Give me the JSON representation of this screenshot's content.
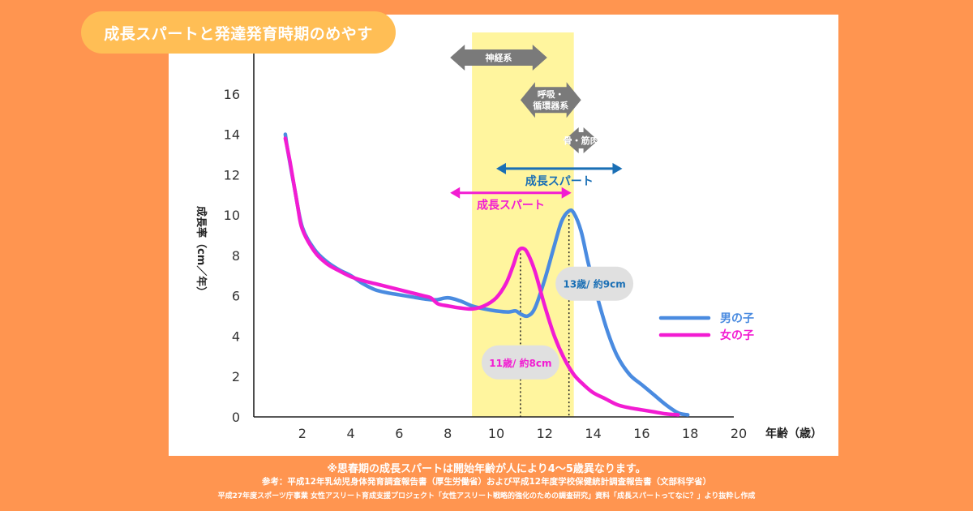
{
  "title": "成長スパートと発達発育時期のめやす",
  "footer": {
    "note": "※思春期の成長スパートは開始年齢が人により4〜5歳異なります。",
    "source1": "参考：平成12年乳幼児身体発育調査報告書（厚生労働省）および平成12年度学校保健統計調査報告書（文部科学省）",
    "source2": "平成27年度スポーツ庁事業 女性アスリート育成支援プロジェクト「女性アスリート戦略的強化のための調査研究」資料「成長スパートってなに？」より抜粋し作成"
  },
  "colors": {
    "boy": "#4A8BE0",
    "girl": "#F21CD2",
    "highlight": "#FFF59E",
    "stage_arrow": "#7A7A7A",
    "boy_spurt": "#1A6FB5",
    "girl_spurt": "#F21CD2",
    "callout_bg": "#E0E0E0"
  },
  "chart_data": {
    "type": "line",
    "ylabel": "成長率（cm／年）",
    "xlabel": "年齢（歳）",
    "xlim": [
      0,
      20
    ],
    "ylim": [
      0,
      18
    ],
    "xticks": [
      2,
      4,
      6,
      8,
      10,
      12,
      14,
      16,
      18,
      20
    ],
    "yticks": [
      0,
      2,
      4,
      6,
      8,
      10,
      12,
      14,
      16
    ],
    "highlight_range": [
      9,
      13.2
    ],
    "legend_position": "right",
    "series": [
      {
        "name": "男の子",
        "color_key": "boy",
        "x": [
          1.3,
          1.4,
          1.7,
          2.0,
          2.5,
          3.0,
          3.5,
          4.0,
          4.5,
          5.0,
          5.5,
          6.0,
          6.5,
          7.0,
          7.5,
          8.0,
          8.5,
          9.0,
          9.5,
          10.0,
          10.5,
          10.8,
          11.0,
          11.3,
          11.6,
          12.0,
          12.4,
          12.7,
          13.0,
          13.2,
          13.5,
          13.8,
          14.2,
          14.6,
          15.0,
          15.5,
          16.0,
          16.5,
          17.0,
          17.5,
          17.9
        ],
        "y": [
          14.0,
          13.2,
          11.2,
          9.4,
          8.3,
          7.7,
          7.3,
          7.0,
          6.6,
          6.3,
          6.15,
          6.05,
          5.95,
          5.85,
          5.8,
          5.9,
          5.75,
          5.5,
          5.35,
          5.25,
          5.2,
          5.25,
          5.1,
          5.0,
          5.4,
          6.8,
          8.5,
          9.7,
          10.2,
          10.1,
          9.2,
          7.6,
          5.8,
          4.2,
          3.0,
          2.1,
          1.6,
          1.1,
          0.6,
          0.2,
          0.1
        ]
      },
      {
        "name": "女の子",
        "color_key": "girl",
        "x": [
          1.3,
          1.5,
          1.8,
          2.0,
          2.5,
          3.0,
          3.5,
          4.0,
          4.5,
          5.0,
          5.5,
          6.0,
          6.5,
          7.0,
          7.3,
          7.6,
          8.0,
          8.5,
          9.0,
          9.5,
          10.0,
          10.4,
          10.7,
          10.9,
          11.1,
          11.3,
          11.6,
          12.0,
          12.4,
          12.8,
          13.2,
          13.6,
          14.0,
          14.5,
          15.0,
          15.5,
          16.0,
          16.5,
          17.0,
          17.5
        ],
        "y": [
          13.8,
          12.6,
          10.5,
          9.3,
          8.2,
          7.6,
          7.25,
          6.95,
          6.75,
          6.6,
          6.45,
          6.3,
          6.15,
          6.0,
          5.9,
          5.6,
          5.5,
          5.4,
          5.35,
          5.5,
          5.9,
          6.6,
          7.5,
          8.2,
          8.35,
          8.1,
          7.2,
          5.5,
          4.0,
          2.9,
          2.1,
          1.6,
          1.2,
          0.9,
          0.6,
          0.45,
          0.35,
          0.25,
          0.15,
          0.1
        ]
      }
    ],
    "stage_arrows": [
      {
        "label": [
          "神経系"
        ],
        "x_start": 8.1,
        "x_end": 12.1,
        "y": 17.8
      },
      {
        "label": [
          "呼吸・",
          "循環器系"
        ],
        "x_start": 11.0,
        "x_end": 13.5,
        "y": 15.7
      },
      {
        "label": [
          "骨・筋肉"
        ],
        "x_start": 12.8,
        "x_end": 14.2,
        "y": 13.7
      }
    ],
    "spurt_ranges": [
      {
        "label": "成長スパート",
        "color_key": "boy_spurt",
        "x_start": 10.0,
        "x_end": 15.2,
        "y": 12.3
      },
      {
        "label": "成長スパート",
        "color_key": "girl_spurt",
        "x_start": 8.1,
        "x_end": 13.1,
        "y": 11.1
      }
    ],
    "peak_lines": [
      {
        "x": 11.0,
        "y_top": 8.3
      },
      {
        "x": 13.0,
        "y_top": 10.2
      }
    ],
    "callouts": [
      {
        "text": "13歳/ 約9cm",
        "color_key": "boy_spurt",
        "x": 14.05,
        "y": 6.6
      },
      {
        "text": "11歳/ 約8cm",
        "color_key": "girl_spurt",
        "x": 11.0,
        "y": 2.7
      }
    ]
  }
}
